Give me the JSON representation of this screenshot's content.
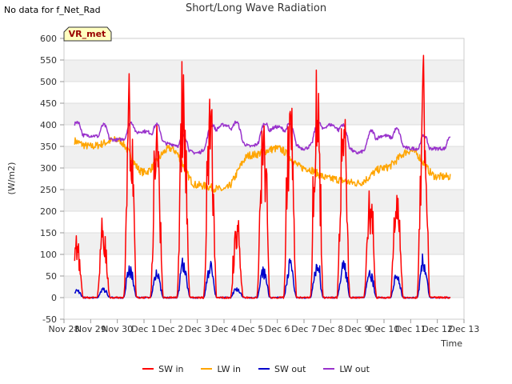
{
  "header": {
    "nodata_text": "No data for f_Net_Rad"
  },
  "chart_data": {
    "type": "line",
    "title": "Short/Long Wave Radiation",
    "xlabel": "Time",
    "ylabel": "(W/m2)",
    "ylim": [
      -50,
      600
    ],
    "yticks": [
      -50,
      0,
      50,
      100,
      150,
      200,
      250,
      300,
      350,
      400,
      450,
      500,
      550,
      600
    ],
    "xticks": [
      "Nov 28",
      "Nov 29",
      "Nov 30",
      "Dec 1",
      "Dec 2",
      "Dec 3",
      "Dec 4",
      "Dec 5",
      "Dec 6",
      "Dec 7",
      "Dec 8",
      "Dec 9",
      "Dec 10",
      "Dec 11",
      "Dec 12",
      "Dec 13"
    ],
    "xlim_days": [
      0,
      15
    ],
    "data_span_days": [
      0.4,
      14.5
    ],
    "annotation": "VR_met",
    "grid": true,
    "legend_position": "bottom",
    "series": [
      {
        "name": "SW in",
        "color": "#ff0000",
        "daily_peaks": [
          150,
          185,
          520,
          425,
          548,
          530,
          180,
          470,
          507,
          525,
          505,
          245,
          290,
          560
        ]
      },
      {
        "name": "LW in",
        "color": "#ffa500",
        "daily_levels": [
          370,
          350,
          365,
          290,
          345,
          260,
          250,
          330,
          345,
          300,
          275,
          265,
          300,
          340,
          280
        ]
      },
      {
        "name": "SW out",
        "color": "#0000cc",
        "daily_peaks": [
          20,
          25,
          85,
          65,
          100,
          90,
          25,
          80,
          90,
          95,
          92,
          65,
          58,
          100
        ]
      },
      {
        "name": "LW out",
        "color": "#9932cc",
        "daily_levels": [
          380,
          375,
          365,
          385,
          355,
          335,
          400,
          350,
          395,
          345,
          400,
          335,
          375,
          345,
          345
        ]
      }
    ]
  }
}
